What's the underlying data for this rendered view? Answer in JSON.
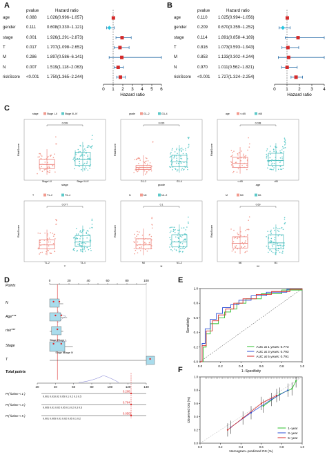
{
  "panels": {
    "A": "A",
    "B": "B",
    "C": "C",
    "D": "D",
    "E": "E",
    "F": "F"
  },
  "forest_A": {
    "col_pvalue": "pvalue",
    "col_hr": "Hazard ratio",
    "xlabel": "Hazard ratio",
    "ticks": [
      "0",
      "1",
      "2",
      "3",
      "4",
      "5",
      "6"
    ],
    "rows": [
      {
        "name": "age",
        "p": "0.088",
        "hr_text": "1.026(0.996−1.057)",
        "hr": 1.026,
        "lo": 0.996,
        "hi": 1.057
      },
      {
        "name": "gender",
        "p": "0.111",
        "hr_text": "0.608(0.330−1.121)",
        "hr": 0.608,
        "lo": 0.33,
        "hi": 1.121
      },
      {
        "name": "stage",
        "p": "0.001",
        "hr_text": "1.926(1.291−2.873)",
        "hr": 1.926,
        "lo": 1.291,
        "hi": 2.873
      },
      {
        "name": "T",
        "p": "0.017",
        "hr_text": "1.707(1.098−2.652)",
        "hr": 1.707,
        "lo": 1.098,
        "hi": 2.652
      },
      {
        "name": "M",
        "p": "0.286",
        "hr_text": "1.897(0.586−6.141)",
        "hr": 1.897,
        "lo": 0.586,
        "hi": 6.141
      },
      {
        "name": "N",
        "p": "0.007",
        "hr_text": "1.519(1.118−2.063)",
        "hr": 1.519,
        "lo": 1.118,
        "hi": 2.063
      },
      {
        "name": "riskScore",
        "p": "<0.001",
        "hr_text": "1.750(1.365−2.244)",
        "hr": 1.75,
        "lo": 1.365,
        "hi": 2.244
      }
    ]
  },
  "forest_B": {
    "col_pvalue": "pvalue",
    "col_hr": "Hazard ratio",
    "xlabel": "Hazard ratio",
    "ticks": [
      "0",
      "1",
      "2",
      "3",
      "4"
    ],
    "rows": [
      {
        "name": "age",
        "p": "0.110",
        "hr_text": "1.025(0.994−1.056)",
        "hr": 1.025,
        "lo": 0.994,
        "hi": 1.056
      },
      {
        "name": "gender",
        "p": "0.209",
        "hr_text": "0.670(0.359−1.252)",
        "hr": 0.67,
        "lo": 0.359,
        "hi": 1.252
      },
      {
        "name": "stage",
        "p": "0.114",
        "hr_text": "1.891(0.858−4.169)",
        "hr": 1.891,
        "lo": 0.858,
        "hi": 4.169
      },
      {
        "name": "T",
        "p": "0.816",
        "hr_text": "1.073(0.593−1.943)",
        "hr": 1.073,
        "lo": 0.593,
        "hi": 1.943
      },
      {
        "name": "M",
        "p": "0.853",
        "hr_text": "1.133(0.302−4.244)",
        "hr": 1.133,
        "lo": 0.302,
        "hi": 4.244
      },
      {
        "name": "N",
        "p": "0.970",
        "hr_text": "1.011(0.562−1.821)",
        "hr": 1.011,
        "lo": 0.562,
        "hi": 1.821
      },
      {
        "name": "riskScore",
        "p": "<0.001",
        "hr_text": "1.727(1.324−2.254)",
        "hr": 1.727,
        "lo": 1.324,
        "hi": 2.254
      }
    ]
  },
  "boxplots": [
    {
      "legend": [
        "stage",
        "Stage I–II",
        "Stage III–IV"
      ],
      "xlabel": "stage",
      "ylabel": "RiskScore",
      "p": "0.009",
      "groups": [
        "Stage I–II",
        "Stage III–IV"
      ],
      "med": [
        0.28,
        0.38
      ],
      "q1": [
        0.2,
        0.26
      ],
      "q3": [
        0.38,
        0.52
      ]
    },
    {
      "legend": [
        "grade",
        "G1–2",
        "G3–4"
      ],
      "xlabel": "grade",
      "ylabel": "RiskScore",
      "p": "0.029",
      "groups": [
        "G1–2",
        "G3–4"
      ],
      "med": [
        0.22,
        0.33
      ],
      "q1": [
        0.18,
        0.24
      ],
      "q3": [
        0.26,
        0.46
      ]
    },
    {
      "legend": [
        "age",
        "<=65",
        ">65"
      ],
      "xlabel": "age",
      "ylabel": "RiskScore",
      "p": "0.038",
      "groups": [
        "<=65",
        ">65"
      ],
      "med": [
        0.3,
        0.36
      ],
      "q1": [
        0.22,
        0.26
      ],
      "q3": [
        0.42,
        0.5
      ]
    },
    {
      "legend": [
        "T",
        "T1–2",
        "T3–4"
      ],
      "xlabel": "T",
      "ylabel": "RiskScore",
      "p": "0.077",
      "groups": [
        "T1–2",
        "T3–4"
      ],
      "med": [
        0.3,
        0.36
      ],
      "q1": [
        0.22,
        0.27
      ],
      "q3": [
        0.4,
        0.48
      ]
    },
    {
      "legend": [
        "N",
        "N0",
        "N1–2"
      ],
      "xlabel": "N",
      "ylabel": "RiskScore",
      "p": "0.1",
      "groups": [
        "N0",
        "N1–2"
      ],
      "med": [
        0.3,
        0.36
      ],
      "q1": [
        0.22,
        0.26
      ],
      "q3": [
        0.42,
        0.5
      ]
    },
    {
      "legend": [
        "M",
        "M0",
        "M1"
      ],
      "xlabel": "M",
      "ylabel": "RiskScore",
      "p": "0.69",
      "groups": [
        "M0",
        "M1"
      ],
      "med": [
        0.33,
        0.34
      ],
      "q1": [
        0.24,
        0.22
      ],
      "q3": [
        0.46,
        0.5
      ]
    }
  ],
  "nomogram": {
    "points_label": "Points",
    "rows": [
      "N",
      "Age***",
      "risk***",
      "Stage",
      "T"
    ],
    "total_label": "Total points",
    "pred": [
      "Pr( futime < 1 )",
      "Pr( futime < 3 )",
      "Pr( futime < 5 )"
    ],
    "points_ticks": [
      "0",
      "20",
      "40",
      "60",
      "80",
      "100"
    ],
    "total_ticks": [
      "20",
      "40",
      "60",
      "80",
      "100",
      "120",
      "140"
    ],
    "stage_labels": [
      "Stage II",
      "Stage I",
      "Stage III",
      "Stage IV"
    ],
    "pred_values": [
      "0.208",
      "0.764",
      "0.0501"
    ],
    "pr_ticks": [
      "0.001 0.010.02 0.05 0.1 0.2 0.3 0.5",
      "0.005 0.01 0.02 0.05 0.1 0.2 0.3 0.5",
      "0.001 0.005 0.01 0.02 0.05 0.1 0.2"
    ]
  },
  "roc": {
    "ylabel": "Sensitivity",
    "xlabel": "1−Specificity",
    "legend": [
      {
        "name": "AUC at 1 years: 0.773",
        "color": "#2bbf2b"
      },
      {
        "name": "AUC at 3 years: 0.793",
        "color": "#2d4fd6"
      },
      {
        "name": "AUC at 5 years: 0.791",
        "color": "#d62a2a"
      }
    ],
    "ticks": [
      "0.0",
      "0.2",
      "0.4",
      "0.6",
      "0.8",
      "1.0"
    ]
  },
  "calibration": {
    "ylabel": "Observed OS (%)",
    "xlabel": "Nomogram−predicted OS (%)",
    "legend": [
      {
        "name": "1−year",
        "color": "#2bbf2b"
      },
      {
        "name": "3−year",
        "color": "#2d4fd6"
      },
      {
        "name": "5−year",
        "color": "#d62a2a"
      }
    ],
    "ticks": [
      "0.0",
      "0.2",
      "0.4",
      "0.6",
      "0.8",
      "1.0"
    ]
  }
}
